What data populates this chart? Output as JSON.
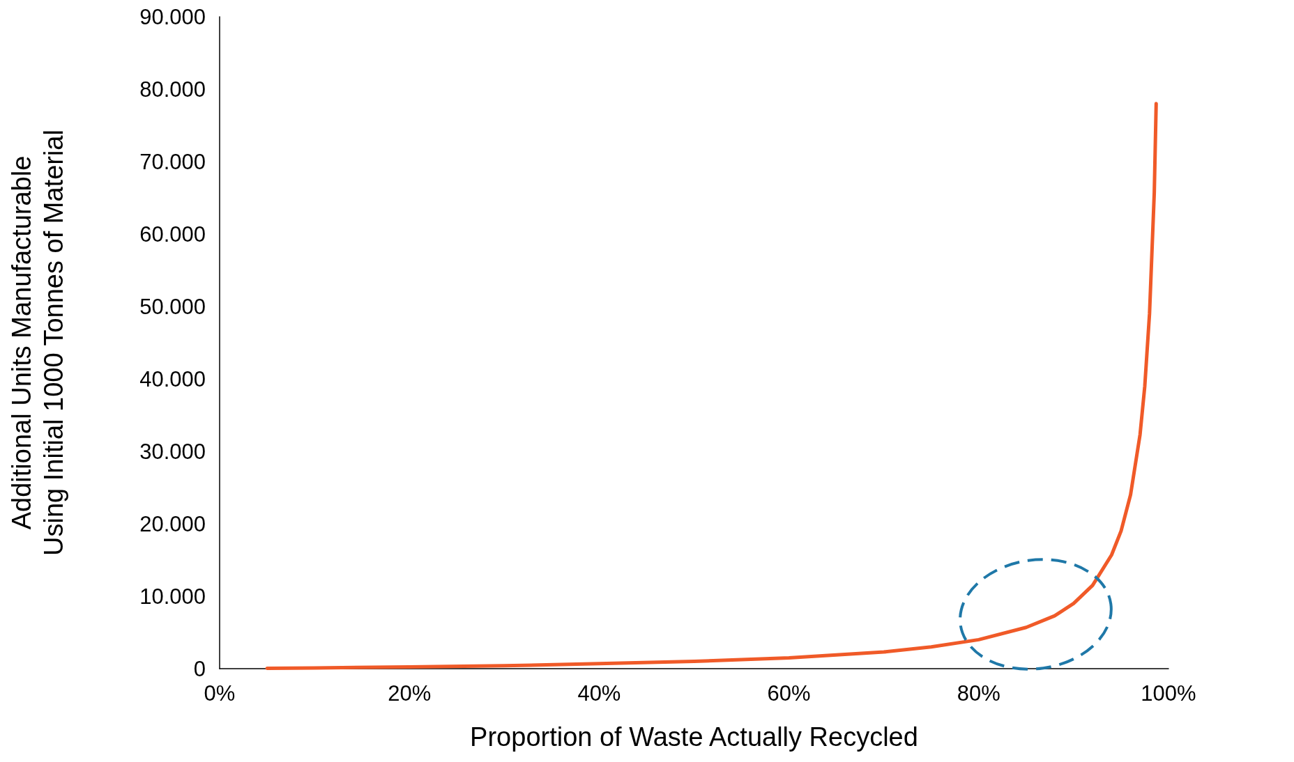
{
  "chart_data": {
    "type": "line",
    "xlabel": "Proportion of Waste Actually Recycled",
    "ylabel": "Additional Units Manufacturable\nUsing Initial 1000 Tonnes of Material",
    "x": [
      5,
      10,
      20,
      30,
      40,
      50,
      60,
      70,
      75,
      80,
      85,
      88,
      90,
      92,
      94,
      95,
      96,
      97,
      97.5,
      98,
      98.5,
      98.7
    ],
    "series": [
      {
        "color": "#f05a28",
        "values": [
          50,
          100,
          250,
          400,
          700,
          1000,
          1500,
          2300,
          3000,
          4000,
          5700,
          7300,
          9000,
          11500,
          15700,
          19000,
          24000,
          32300,
          39000,
          49000,
          65700,
          78000
        ]
      }
    ],
    "xlim": [
      0,
      100
    ],
    "xticks": [
      {
        "value": 0,
        "label": "0%"
      },
      {
        "value": 20,
        "label": "20%"
      },
      {
        "value": 40,
        "label": "40%"
      },
      {
        "value": 60,
        "label": "60%"
      },
      {
        "value": 80,
        "label": "80%"
      },
      {
        "value": 100,
        "label": "100%"
      }
    ],
    "ylim": [
      0,
      90000
    ],
    "yticks": [
      0,
      {
        "value": 10000,
        "label": "10.000"
      },
      {
        "value": 20000,
        "label": "20.000"
      },
      {
        "value": 30000,
        "label": "30.000"
      },
      {
        "value": 40000,
        "label": "40.000"
      },
      {
        "value": 50000,
        "label": "50.000"
      },
      {
        "value": 60000,
        "label": "60.000"
      },
      {
        "value": 70000,
        "label": "70.000"
      },
      {
        "value": 80000,
        "label": "80.000"
      },
      {
        "value": 90000,
        "label": "90.000"
      }
    ],
    "grid": false,
    "marker": "none",
    "line_style": "solid"
  }
}
